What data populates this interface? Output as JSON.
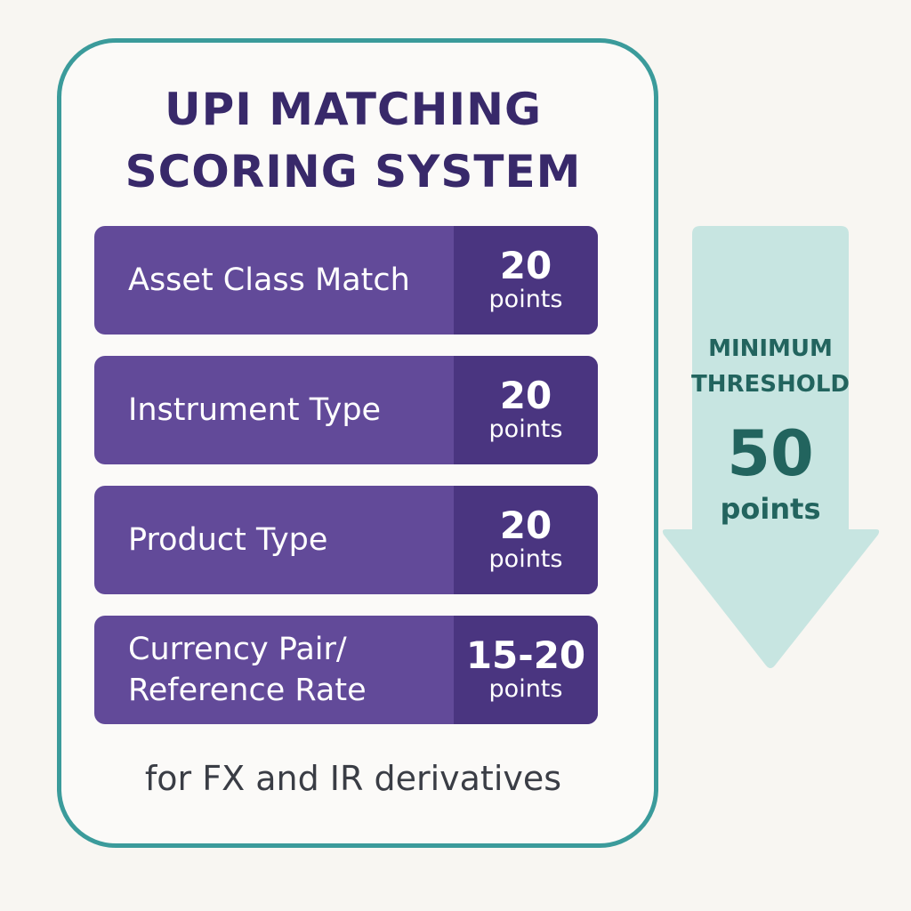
{
  "title": {
    "line1": "UPI MATCHING",
    "line2": "SCORING SYSTEM"
  },
  "criteria": [
    {
      "label_line1": "Asset Class Match",
      "label_line2": "",
      "points": "20",
      "unit": "points"
    },
    {
      "label_line1": "Instrument Type",
      "label_line2": "",
      "points": "20",
      "unit": "points"
    },
    {
      "label_line1": "Product Type",
      "label_line2": "",
      "points": "20",
      "unit": "points"
    },
    {
      "label_line1": "Currency Pair/",
      "label_line2": "Reference Rate",
      "points": "15-20",
      "unit": "points"
    }
  ],
  "footnote": "for FX and IR derivatives",
  "threshold": {
    "label_line1": "MINIMUM",
    "label_line2": "THRESHOLD",
    "value": "50",
    "unit": "points"
  },
  "colors": {
    "card_border": "#3b9b9b",
    "title": "#38296a",
    "row_bg": "#624a99",
    "row_points_bg": "#4a3580",
    "arrow_fill": "#c7e5e1",
    "threshold_text": "#22645e"
  },
  "icons": {
    "threshold_arrow": "down-arrow-icon"
  }
}
